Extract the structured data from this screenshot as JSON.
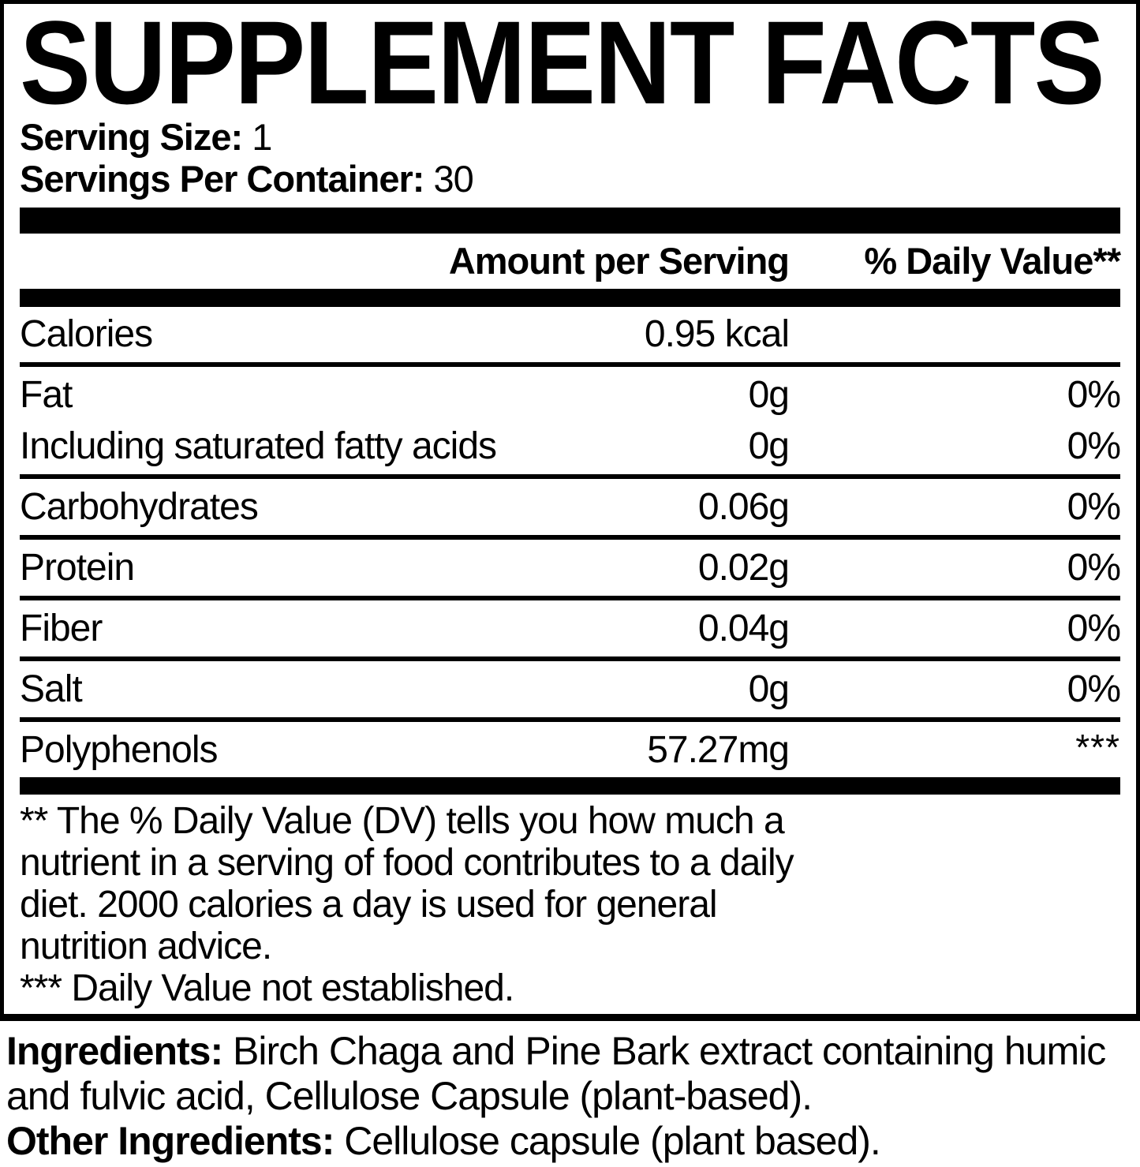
{
  "colors": {
    "background": "#ffffff",
    "text": "#000000"
  },
  "label": {
    "title": "SUPPLEMENT FACTS",
    "serving_size_label": "Serving Size:",
    "serving_size_value": "1",
    "servings_per_container_label": "Servings Per Container:",
    "servings_per_container_value": "30",
    "columns": {
      "amount": "Amount per Serving",
      "daily_value": "% Daily Value**"
    },
    "rows": [
      {
        "name": "Calories",
        "amount": "0.95 kcal",
        "daily_value": "",
        "dv_superscript": false,
        "divider_after": true
      },
      {
        "name": "Fat",
        "amount": "0g",
        "daily_value": "0%",
        "dv_superscript": false,
        "divider_after": false
      },
      {
        "name": "Including saturated fatty acids",
        "amount": "0g",
        "daily_value": "0%",
        "dv_superscript": false,
        "divider_after": true
      },
      {
        "name": "Carbohydrates",
        "amount": "0.06g",
        "daily_value": "0%",
        "dv_superscript": false,
        "divider_after": true
      },
      {
        "name": "Protein",
        "amount": "0.02g",
        "daily_value": "0%",
        "dv_superscript": false,
        "divider_after": true
      },
      {
        "name": "Fiber",
        "amount": "0.04g",
        "daily_value": "0%",
        "dv_superscript": false,
        "divider_after": true
      },
      {
        "name": "Salt",
        "amount": "0g",
        "daily_value": "0%",
        "dv_superscript": false,
        "divider_after": true
      },
      {
        "name": "Polyphenols",
        "amount": "57.27mg",
        "daily_value": "***",
        "dv_superscript": true,
        "divider_after": false
      }
    ],
    "footnote_lines": [
      "** The % Daily Value (DV) tells you how much a",
      "nutrient in a serving of food contributes to a daily",
      "diet. 2000 calories a day is used for general",
      "nutrition advice.",
      "*** Daily Value not established."
    ],
    "ingredients": {
      "label": "Ingredients:",
      "text": " Birch Chaga and Pine Bark extract containing humic and fulvic acid, Cellulose Capsule (plant-based).",
      "other_label": "Other Ingredients:",
      "other_text": " Cellulose capsule (plant based)."
    }
  }
}
